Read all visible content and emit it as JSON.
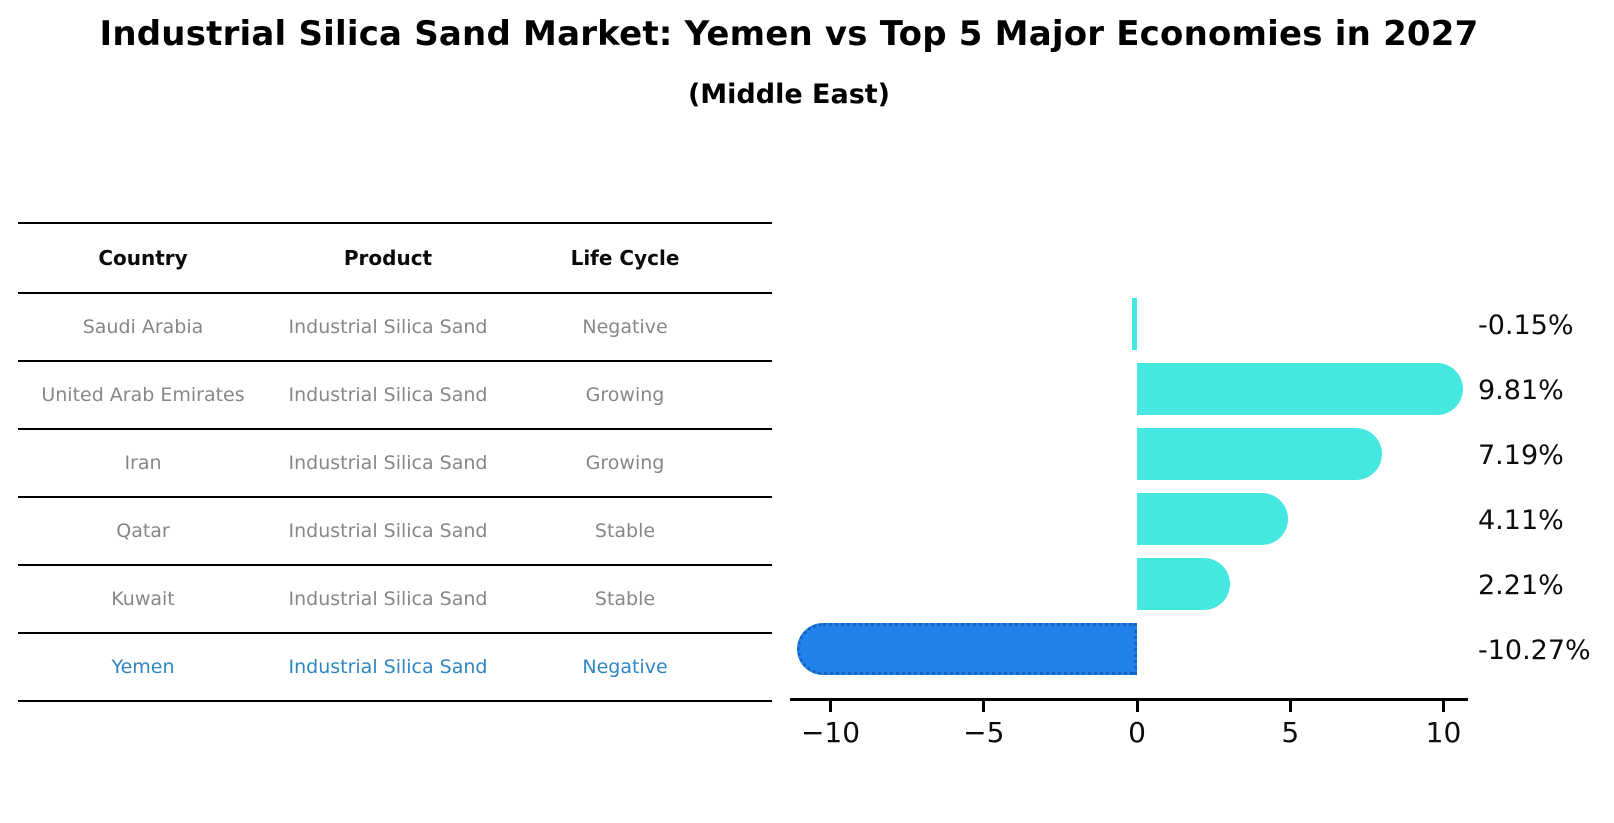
{
  "header": {
    "title": "Industrial Silica Sand Market: Yemen vs Top 5 Major Economies in 2027",
    "subtitle": "(Middle East)"
  },
  "table": {
    "columns": [
      "Country",
      "Product",
      "Life Cycle"
    ],
    "rows": [
      {
        "country": "Saudi Arabia",
        "product": "Industrial Silica Sand",
        "life_cycle": "Negative",
        "highlight": false
      },
      {
        "country": "United Arab Emirates",
        "product": "Industrial Silica Sand",
        "life_cycle": "Growing",
        "highlight": false
      },
      {
        "country": "Iran",
        "product": "Industrial Silica Sand",
        "life_cycle": "Growing",
        "highlight": false
      },
      {
        "country": "Qatar",
        "product": "Industrial Silica Sand",
        "life_cycle": "Stable",
        "highlight": false
      },
      {
        "country": "Kuwait",
        "product": "Industrial Silica Sand",
        "life_cycle": "Stable",
        "highlight": false
      },
      {
        "country": "Yemen",
        "product": "Industrial Silica Sand",
        "life_cycle": "Negative",
        "highlight": true
      }
    ]
  },
  "chart_data": {
    "type": "bar",
    "orientation": "horizontal",
    "title": "Industrial Silica Sand Market: Yemen vs Top 5 Major Economies in 2027 (Middle East)",
    "categories": [
      "Saudi Arabia",
      "United Arab Emirates",
      "Iran",
      "Qatar",
      "Kuwait",
      "Yemen"
    ],
    "values": [
      -0.15,
      9.81,
      7.19,
      4.11,
      2.21,
      -10.27
    ],
    "value_labels": [
      "-0.15%",
      "9.81%",
      "7.19%",
      "4.11%",
      "2.21%",
      "-10.27%"
    ],
    "unit": "percent",
    "xlim": [
      -12,
      11
    ],
    "x_ticks": [
      -10,
      -5,
      0,
      5,
      10
    ],
    "x_tick_labels": [
      "−10",
      "−5",
      "0",
      "5",
      "10"
    ],
    "grid": false,
    "legend": "none",
    "highlight_index": 5,
    "value_label_position": "right-outside"
  },
  "colors": {
    "bar_default": "#45E8E1",
    "bar_highlight": "#2181EB",
    "bar_highlight_border": "#1565C0",
    "highlight_text": "#2E86C1",
    "table_text": "#878787",
    "axis": "#000000"
  }
}
